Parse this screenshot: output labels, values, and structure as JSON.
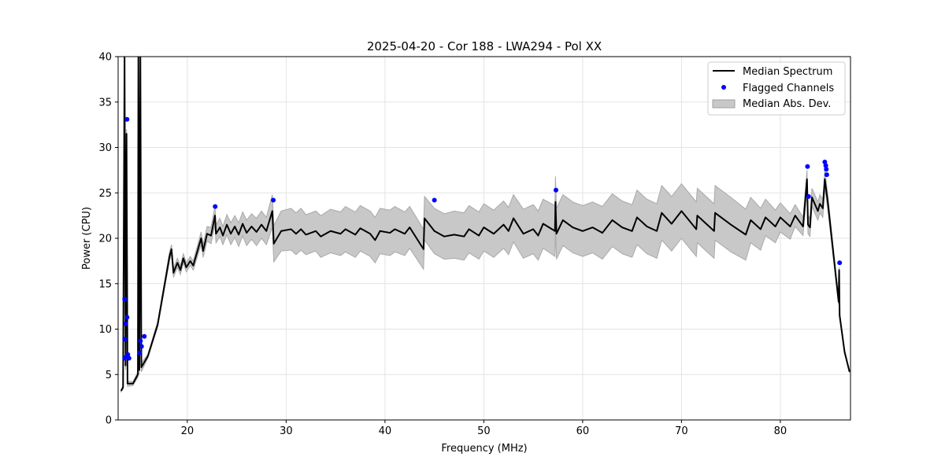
{
  "chart_data": {
    "type": "line",
    "title": "2025-04-20 - Cor 188 - LWA294 - Pol XX",
    "xlabel": "Frequency (MHz)",
    "ylabel": "Power (CPU)",
    "xlim": [
      13.0,
      87.1
    ],
    "ylim": [
      0,
      40
    ],
    "xticks": [
      20,
      30,
      40,
      50,
      60,
      70,
      80
    ],
    "yticks": [
      0,
      5,
      10,
      15,
      20,
      25,
      30,
      35,
      40
    ],
    "grid": true,
    "legend_position": "top-right",
    "legend": [
      "Median Spectrum",
      "Flagged Channels",
      "Median Abs. Dev."
    ],
    "colors": {
      "median": "#000000",
      "flagged": "#0000ff",
      "mad": "#bfbfbf"
    },
    "median_spectrum": [
      [
        13.3,
        3.2,
        0.1
      ],
      [
        13.5,
        3.6,
        0.2
      ],
      [
        13.65,
        40,
        0.5
      ],
      [
        13.75,
        6,
        0.5
      ],
      [
        13.85,
        31.5,
        0.5
      ],
      [
        13.95,
        4,
        0.3
      ],
      [
        14.5,
        4,
        0.2
      ],
      [
        15.0,
        5,
        0.3
      ],
      [
        15.05,
        40,
        0.5
      ],
      [
        15.15,
        5.5,
        0.5
      ],
      [
        15.25,
        40,
        0.5
      ],
      [
        15.35,
        5.8,
        0.5
      ],
      [
        16,
        7,
        0.2
      ],
      [
        17,
        10.5,
        0.3
      ],
      [
        17.8,
        15.5,
        0.4
      ],
      [
        18.2,
        18,
        0.5
      ],
      [
        18.4,
        18.8,
        0.5
      ],
      [
        18.6,
        16.2,
        0.5
      ],
      [
        19,
        17.3,
        0.5
      ],
      [
        19.3,
        16.5,
        0.5
      ],
      [
        19.6,
        17.8,
        0.5
      ],
      [
        19.9,
        16.8,
        0.5
      ],
      [
        20.3,
        17.5,
        0.5
      ],
      [
        20.6,
        17,
        0.5
      ],
      [
        21,
        18.5,
        0.6
      ],
      [
        21.4,
        20,
        0.7
      ],
      [
        21.6,
        18.6,
        0.7
      ],
      [
        22,
        20.5,
        0.8
      ],
      [
        22.4,
        20.3,
        0.9
      ],
      [
        22.8,
        22.5,
        1
      ],
      [
        22.9,
        20.5,
        1
      ],
      [
        23.3,
        21.2,
        1
      ],
      [
        23.6,
        20.3,
        1
      ],
      [
        24,
        21.5,
        1.1
      ],
      [
        24.4,
        20.5,
        1.2
      ],
      [
        24.8,
        21.3,
        1.2
      ],
      [
        25.2,
        20.4,
        1.3
      ],
      [
        25.6,
        21.6,
        1.3
      ],
      [
        26,
        20.6,
        1.4
      ],
      [
        26.5,
        21.3,
        1.4
      ],
      [
        27,
        20.7,
        1.5
      ],
      [
        27.5,
        21.5,
        1.5
      ],
      [
        28,
        20.8,
        1.5
      ],
      [
        28.6,
        23,
        1.8
      ],
      [
        28.75,
        19.4,
        2
      ],
      [
        29.5,
        20.8,
        2.2
      ],
      [
        30.5,
        21,
        2.3
      ],
      [
        31,
        20.5,
        2.3
      ],
      [
        31.5,
        21,
        2.3
      ],
      [
        32,
        20.4,
        2.2
      ],
      [
        33,
        20.8,
        2.2
      ],
      [
        33.5,
        20.2,
        2.3
      ],
      [
        34.5,
        20.8,
        2.4
      ],
      [
        35.5,
        20.5,
        2.4
      ],
      [
        36,
        21,
        2.5
      ],
      [
        37,
        20.4,
        2.5
      ],
      [
        37.5,
        21.1,
        2.5
      ],
      [
        38.5,
        20.5,
        2.5
      ],
      [
        39,
        19.8,
        2.5
      ],
      [
        39.5,
        20.8,
        2.5
      ],
      [
        40.5,
        20.6,
        2.5
      ],
      [
        41,
        21,
        2.5
      ],
      [
        42,
        20.5,
        2.4
      ],
      [
        42.5,
        21.2,
        2.3
      ],
      [
        43.9,
        18.8,
        2.2
      ],
      [
        44,
        22.2,
        2.4
      ],
      [
        45,
        20.8,
        2.5
      ],
      [
        46,
        20.2,
        2.5
      ],
      [
        47,
        20.4,
        2.6
      ],
      [
        48,
        20.2,
        2.6
      ],
      [
        48.5,
        21,
        2.6
      ],
      [
        49.5,
        20.3,
        2.6
      ],
      [
        50,
        21.2,
        2.6
      ],
      [
        51,
        20.5,
        2.6
      ],
      [
        52,
        21.5,
        2.6
      ],
      [
        52.5,
        20.8,
        2.6
      ],
      [
        53,
        22.2,
        2.6
      ],
      [
        54,
        20.5,
        2.7
      ],
      [
        55,
        21,
        2.7
      ],
      [
        55.5,
        20.3,
        2.7
      ],
      [
        56,
        21.6,
        2.7
      ],
      [
        57.2,
        20.8,
        2.8
      ],
      [
        57.25,
        24,
        2.8
      ],
      [
        57.35,
        20.5,
        2.8
      ],
      [
        58,
        22,
        2.8
      ],
      [
        59,
        21.2,
        2.8
      ],
      [
        60,
        20.8,
        2.8
      ],
      [
        61,
        21.2,
        2.8
      ],
      [
        62,
        20.6,
        2.9
      ],
      [
        63,
        22,
        2.9
      ],
      [
        64,
        21.2,
        2.9
      ],
      [
        65,
        20.8,
        2.9
      ],
      [
        65.5,
        22.3,
        3
      ],
      [
        66.5,
        21.3,
        3
      ],
      [
        67.5,
        20.8,
        3
      ],
      [
        68,
        22.8,
        3
      ],
      [
        69,
        21.6,
        3
      ],
      [
        70,
        23,
        3
      ],
      [
        71.5,
        21,
        3
      ],
      [
        71.6,
        22.5,
        3
      ],
      [
        73.3,
        20.8,
        3
      ],
      [
        73.4,
        22.8,
        3
      ],
      [
        75,
        21.5,
        3
      ],
      [
        76.5,
        20.4,
        2.8
      ],
      [
        77,
        22,
        2.5
      ],
      [
        78,
        21,
        2.3
      ],
      [
        78.5,
        22.3,
        2
      ],
      [
        79.5,
        21.3,
        1.8
      ],
      [
        80,
        22.3,
        1.6
      ],
      [
        81,
        21.3,
        1.4
      ],
      [
        81.5,
        22.5,
        1.2
      ],
      [
        82.3,
        21.3,
        1
      ],
      [
        82.7,
        26.5,
        1
      ],
      [
        82.8,
        21.5,
        1
      ],
      [
        83,
        21.2,
        1
      ],
      [
        83.2,
        24.5,
        1
      ],
      [
        83.8,
        23,
        1
      ],
      [
        84,
        23.8,
        1
      ],
      [
        84.3,
        23.3,
        1
      ],
      [
        84.5,
        26.5,
        1
      ],
      [
        84.8,
        24,
        0.8
      ],
      [
        85.5,
        17,
        0.5
      ],
      [
        85.9,
        13,
        0.3
      ],
      [
        85.95,
        16.5,
        0.3
      ],
      [
        86,
        11.5,
        0.3
      ],
      [
        86.5,
        7.5,
        0.2
      ],
      [
        87,
        5.3,
        0.1
      ]
    ],
    "flagged_channels": [
      [
        13.9,
        33.1
      ],
      [
        13.66,
        13.3
      ],
      [
        13.9,
        11.3
      ],
      [
        13.77,
        10.6
      ],
      [
        13.66,
        8.9
      ],
      [
        13.66,
        6.8
      ],
      [
        13.85,
        7.0
      ],
      [
        13.98,
        7.2
      ],
      [
        14.1,
        6.8
      ],
      [
        15.18,
        7.4
      ],
      [
        15.26,
        8.7
      ],
      [
        15.37,
        8.1
      ],
      [
        15.65,
        9.2
      ],
      [
        22.82,
        23.5
      ],
      [
        28.7,
        24.2
      ],
      [
        45.0,
        24.2
      ],
      [
        57.3,
        25.3
      ],
      [
        82.75,
        27.9
      ],
      [
        82.86,
        24.6
      ],
      [
        84.5,
        28.4
      ],
      [
        84.6,
        28.0
      ],
      [
        84.65,
        27.6
      ],
      [
        84.7,
        27.0
      ],
      [
        86.0,
        17.3
      ]
    ]
  }
}
